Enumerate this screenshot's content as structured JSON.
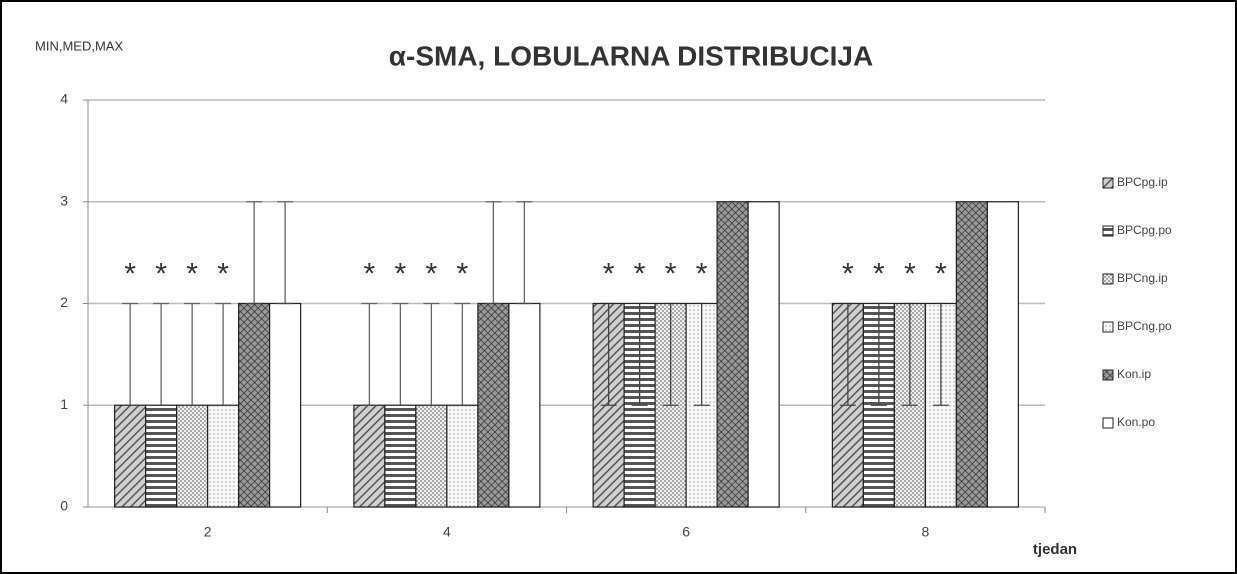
{
  "chart_data": {
    "type": "bar",
    "title": "α-SMA, LOBULARNA DISTRIBUCIJA",
    "y_label": "MIN,MED,MAX",
    "x_label": "tjedan",
    "categories": [
      "2",
      "4",
      "6",
      "8"
    ],
    "ylim": [
      0,
      4
    ],
    "yticks": [
      0,
      1,
      2,
      3,
      4
    ],
    "grid": true,
    "legend": "right",
    "series": [
      {
        "name": "BPCpg.ip",
        "color": "#8c8c8c",
        "pattern": "diagonal",
        "values": [
          1,
          1,
          2,
          2
        ],
        "min": [
          1,
          1,
          1,
          1
        ],
        "max": [
          2,
          2,
          2,
          2
        ],
        "labels": [
          "*",
          "*",
          "*",
          "*"
        ]
      },
      {
        "name": "BPCpg.po",
        "color": "#7a7a7a",
        "pattern": "horizontal",
        "values": [
          1,
          1,
          2,
          2
        ],
        "min": [
          1,
          1,
          1,
          1
        ],
        "max": [
          2,
          2,
          2,
          2
        ],
        "labels": [
          "*",
          "*",
          "*",
          "*"
        ]
      },
      {
        "name": "BPCng.ip",
        "color": "#a0a0a0",
        "pattern": "dots",
        "values": [
          1,
          1,
          2,
          2
        ],
        "min": [
          1,
          1,
          1,
          1
        ],
        "max": [
          2,
          2,
          2,
          2
        ],
        "labels": [
          "*",
          "*",
          "*",
          "*"
        ]
      },
      {
        "name": "BPCng.po",
        "color": "#b4b4b4",
        "pattern": "fine-dots",
        "values": [
          1,
          1,
          2,
          2
        ],
        "min": [
          1,
          1,
          1,
          1
        ],
        "max": [
          2,
          2,
          2,
          2
        ],
        "labels": [
          "*",
          "*",
          "*",
          "*"
        ]
      },
      {
        "name": "Kon.ip",
        "color": "#5a5a5a",
        "pattern": "cross",
        "values": [
          2,
          2,
          3,
          3
        ],
        "min": [
          2,
          2,
          3,
          3
        ],
        "max": [
          3,
          3,
          3,
          3
        ]
      },
      {
        "name": "Kon.po",
        "color": "#ffffff",
        "pattern": "none",
        "values": [
          2,
          2,
          3,
          3
        ],
        "min": [
          2,
          2,
          3,
          3
        ],
        "max": [
          3,
          3,
          3,
          3
        ]
      }
    ]
  }
}
